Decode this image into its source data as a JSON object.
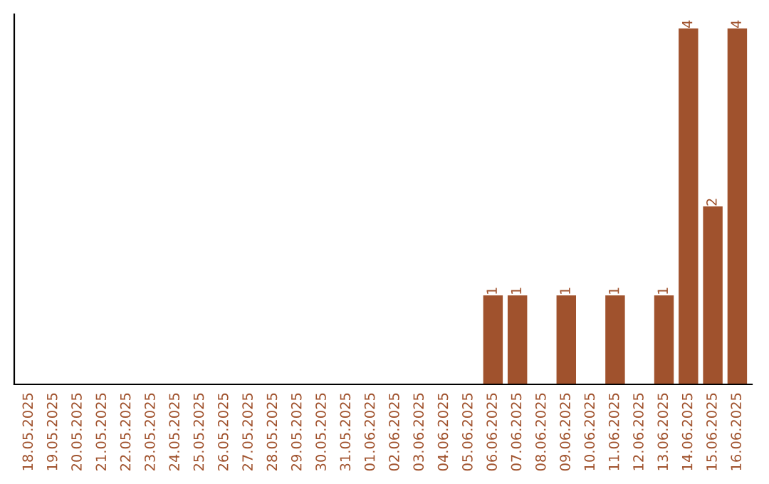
{
  "chart_data": {
    "type": "bar",
    "categories": [
      "18.05.2025",
      "19.05.2025",
      "20.05.2025",
      "21.05.2025",
      "22.05.2025",
      "23.05.2025",
      "24.05.2025",
      "25.05.2025",
      "26.05.2025",
      "27.05.2025",
      "28.05.2025",
      "29.05.2025",
      "30.05.2025",
      "31.05.2025",
      "01.06.2025",
      "02.06.2025",
      "03.06.2025",
      "04.06.2025",
      "05.06.2025",
      "06.06.2025",
      "07.06.2025",
      "08.06.2025",
      "09.06.2025",
      "10.06.2025",
      "11.06.2025",
      "12.06.2025",
      "13.06.2025",
      "14.06.2025",
      "15.06.2025",
      "16.06.2025"
    ],
    "values": [
      null,
      null,
      null,
      null,
      null,
      null,
      null,
      null,
      null,
      null,
      null,
      null,
      null,
      null,
      null,
      null,
      null,
      null,
      null,
      1,
      1,
      null,
      1,
      null,
      1,
      null,
      1,
      4,
      2,
      4
    ],
    "value_labels": [
      null,
      null,
      null,
      null,
      null,
      null,
      null,
      null,
      null,
      null,
      null,
      null,
      null,
      null,
      null,
      null,
      null,
      null,
      null,
      "1",
      "1",
      null,
      "1",
      null,
      "1",
      null,
      "1",
      "4",
      "2",
      "4"
    ],
    "color": "#a0522d",
    "grid": false,
    "legend": false
  }
}
